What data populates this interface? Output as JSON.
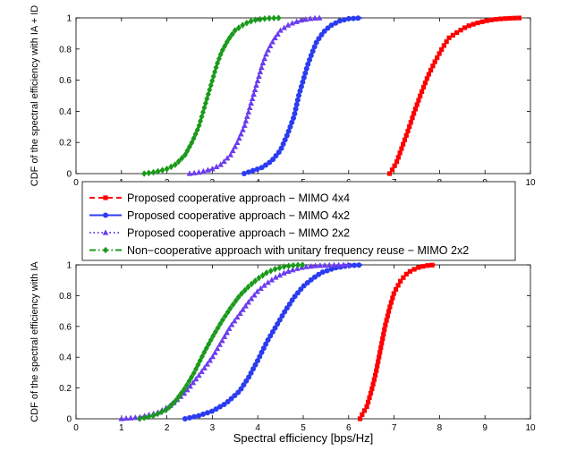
{
  "colors": {
    "red": "#ff0000",
    "blue": "#2b3cf0",
    "purple": "#6b3cf0",
    "green": "#1a9a1a"
  },
  "legend": {
    "entries": [
      {
        "label": "Proposed cooperative approach − MIMO 4x4",
        "color": "#ff0000",
        "style": "dashed",
        "marker": "square"
      },
      {
        "label": "Proposed cooperative approach − MIMO 4x2",
        "color": "#2b3cf0",
        "style": "solid",
        "marker": "circle"
      },
      {
        "label": "Proposed cooperative approach − MIMO 2x2",
        "color": "#6b3cf0",
        "style": "dotted",
        "marker": "triangle"
      },
      {
        "label": "Non−cooperative approach with unitary frequency reuse − MIMO 2x2",
        "color": "#1a9a1a",
        "style": "dashdot",
        "marker": "diamond"
      }
    ]
  },
  "chart_data": [
    {
      "type": "line",
      "title": "",
      "xlabel": "",
      "ylabel": "CDF of the spectral efficiency with IA + ID",
      "xlim": [
        0,
        10
      ],
      "ylim": [
        0,
        1
      ],
      "xticks": [
        "0",
        "1",
        "2",
        "3",
        "4",
        "5",
        "6",
        "7",
        "8",
        "9",
        "10"
      ],
      "yticks": [
        "0",
        "0.2",
        "0.4",
        "0.6",
        "0.8",
        "1"
      ],
      "grid": false,
      "series": [
        {
          "name": "Proposed cooperative approach − MIMO 4x4",
          "x": [
            6.9,
            6.95,
            7.05,
            7.15,
            7.3,
            7.45,
            7.6,
            7.75,
            7.9,
            8.05,
            8.2,
            8.4,
            8.6,
            8.8,
            9.0,
            9.2,
            9.4,
            9.6,
            9.8
          ],
          "y": [
            0.0,
            0.02,
            0.07,
            0.15,
            0.27,
            0.4,
            0.52,
            0.63,
            0.72,
            0.8,
            0.87,
            0.91,
            0.945,
            0.965,
            0.98,
            0.99,
            0.995,
            0.998,
            1.0
          ]
        },
        {
          "name": "Proposed cooperative approach − MIMO 4x2",
          "x": [
            3.7,
            3.9,
            4.1,
            4.3,
            4.5,
            4.65,
            4.8,
            4.9,
            5.0,
            5.1,
            5.2,
            5.3,
            5.45,
            5.6,
            5.8,
            6.0,
            6.3
          ],
          "y": [
            0.0,
            0.02,
            0.04,
            0.08,
            0.15,
            0.25,
            0.37,
            0.5,
            0.6,
            0.7,
            0.78,
            0.85,
            0.91,
            0.95,
            0.98,
            0.995,
            1.0
          ]
        },
        {
          "name": "Proposed cooperative approach − MIMO 2x2",
          "x": [
            2.5,
            2.75,
            3.0,
            3.2,
            3.4,
            3.55,
            3.7,
            3.8,
            3.9,
            4.0,
            4.1,
            4.2,
            4.35,
            4.5,
            4.7,
            4.95,
            5.2,
            5.4
          ],
          "y": [
            0.0,
            0.01,
            0.03,
            0.06,
            0.12,
            0.2,
            0.3,
            0.4,
            0.5,
            0.6,
            0.7,
            0.78,
            0.86,
            0.92,
            0.96,
            0.985,
            0.997,
            1.0
          ]
        },
        {
          "name": "Non−cooperative approach with unitary frequency reuse − MIMO 2x2",
          "x": [
            1.5,
            1.75,
            2.0,
            2.2,
            2.4,
            2.55,
            2.7,
            2.8,
            2.9,
            3.0,
            3.1,
            3.2,
            3.35,
            3.5,
            3.7,
            3.9,
            4.2,
            4.5
          ],
          "y": [
            0.0,
            0.01,
            0.03,
            0.06,
            0.12,
            0.2,
            0.3,
            0.4,
            0.5,
            0.6,
            0.7,
            0.78,
            0.86,
            0.92,
            0.96,
            0.985,
            0.997,
            1.0
          ]
        }
      ]
    },
    {
      "type": "line",
      "title": "",
      "xlabel": "Spectral efficiency [bps/Hz]",
      "ylabel": "CDF of the spectral efficiency with IA",
      "xlim": [
        0,
        10
      ],
      "ylim": [
        0,
        1
      ],
      "xticks": [
        "0",
        "1",
        "2",
        "3",
        "4",
        "5",
        "6",
        "7",
        "8",
        "9",
        "10"
      ],
      "yticks": [
        "0",
        "0.2",
        "0.4",
        "0.6",
        "0.8",
        "1"
      ],
      "grid": false,
      "series": [
        {
          "name": "Proposed cooperative approach − MIMO 4x4",
          "x": [
            6.25,
            6.3,
            6.4,
            6.5,
            6.6,
            6.7,
            6.8,
            6.9,
            7.0,
            7.15,
            7.3,
            7.5,
            7.7,
            7.9
          ],
          "y": [
            0.0,
            0.03,
            0.08,
            0.18,
            0.3,
            0.45,
            0.6,
            0.72,
            0.82,
            0.9,
            0.95,
            0.98,
            0.995,
            1.0
          ]
        },
        {
          "name": "Proposed cooperative approach − MIMO 4x2",
          "x": [
            2.4,
            2.7,
            3.0,
            3.3,
            3.6,
            3.8,
            4.0,
            4.2,
            4.4,
            4.6,
            4.8,
            5.0,
            5.2,
            5.4,
            5.7,
            6.0,
            6.3
          ],
          "y": [
            0.0,
            0.02,
            0.05,
            0.1,
            0.18,
            0.27,
            0.38,
            0.5,
            0.6,
            0.7,
            0.79,
            0.86,
            0.91,
            0.95,
            0.98,
            0.995,
            1.0
          ]
        },
        {
          "name": "Proposed cooperative approach − MIMO 2x2",
          "x": [
            1.0,
            1.4,
            1.8,
            2.1,
            2.4,
            2.7,
            3.0,
            3.2,
            3.4,
            3.6,
            3.8,
            4.0,
            4.2,
            4.4,
            4.6,
            4.8,
            5.0,
            5.3,
            5.6,
            6.0
          ],
          "y": [
            0.0,
            0.01,
            0.04,
            0.09,
            0.17,
            0.28,
            0.4,
            0.5,
            0.6,
            0.68,
            0.76,
            0.83,
            0.88,
            0.92,
            0.95,
            0.97,
            0.985,
            0.995,
            0.998,
            1.0
          ]
        },
        {
          "name": "Non−cooperative approach with unitary frequency reuse − MIMO 2x2",
          "x": [
            1.4,
            1.7,
            2.0,
            2.2,
            2.4,
            2.6,
            2.8,
            3.0,
            3.2,
            3.4,
            3.6,
            3.8,
            4.0,
            4.2,
            4.4,
            4.6,
            4.8,
            5.0
          ],
          "y": [
            0.0,
            0.02,
            0.06,
            0.12,
            0.2,
            0.3,
            0.42,
            0.53,
            0.63,
            0.72,
            0.8,
            0.86,
            0.91,
            0.95,
            0.975,
            0.99,
            0.997,
            1.0
          ]
        }
      ]
    }
  ]
}
